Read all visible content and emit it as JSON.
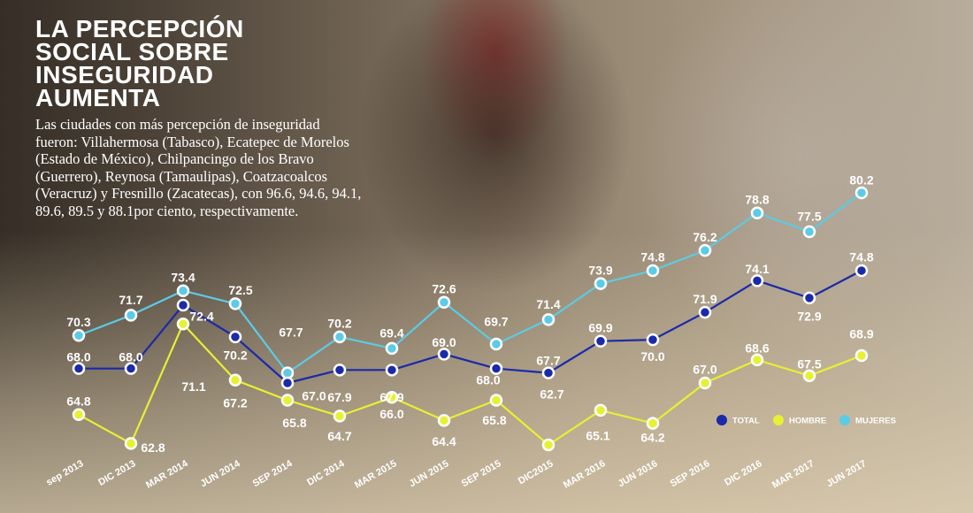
{
  "header": {
    "title": "LA PERCEPCIÓN SOCIAL SOBRE INSEGURIDAD AUMENTA",
    "intro": "Las ciudades con más percepción de inseguridad fueron: Villahermosa (Tabasco), Ecatepec de Morelos (Estado de México), Chilpancingo de los Bravo (Guerrero), Reynosa (Tamaulipas), Coatzacoalcos (Veracruz) y Fresnillo (Zacatecas), con 96.6, 94.6, 94.1, 89.6, 89.5 y 88.1por ciento, respectivamente."
  },
  "chart_data": {
    "type": "line",
    "title": "LA PERCEPCIÓN SOCIAL SOBRE INSEGURIDAD AUMENTA",
    "xlabel": "",
    "ylabel": "",
    "grid": false,
    "legend_position": "bottom-right",
    "categories": [
      "sep 2013",
      "DIC 2013",
      "MAR 2014",
      "JUN 2014",
      "SEP 2014",
      "DIC 2014",
      "MAR 2015",
      "JUN 2015",
      "SEP 2015",
      "DIC2015",
      "MAR 2016",
      "JUN 2016",
      "SEP 2016",
      "DIC 2016",
      "MAR 2017",
      "JUN 2017"
    ],
    "series": [
      {
        "name": "TOTAL",
        "color": "#1a2aa8",
        "values": [
          68.0,
          68.0,
          72.4,
          70.2,
          67.0,
          67.9,
          67.9,
          69.0,
          68.0,
          67.7,
          69.9,
          70.0,
          71.9,
          74.1,
          72.9,
          74.8
        ]
      },
      {
        "name": "HOMBRE",
        "color": "#e8f032",
        "values": [
          64.8,
          62.8,
          71.1,
          67.2,
          65.8,
          64.7,
          66.0,
          64.4,
          65.8,
          62.7,
          65.1,
          64.2,
          67.0,
          68.6,
          67.5,
          68.9
        ]
      },
      {
        "name": "MUJERES",
        "color": "#5ccbe6",
        "values": [
          70.3,
          71.7,
          73.4,
          72.5,
          67.7,
          70.2,
          69.4,
          72.6,
          69.7,
          71.4,
          73.9,
          74.8,
          76.2,
          78.8,
          77.5,
          80.2
        ]
      }
    ]
  }
}
